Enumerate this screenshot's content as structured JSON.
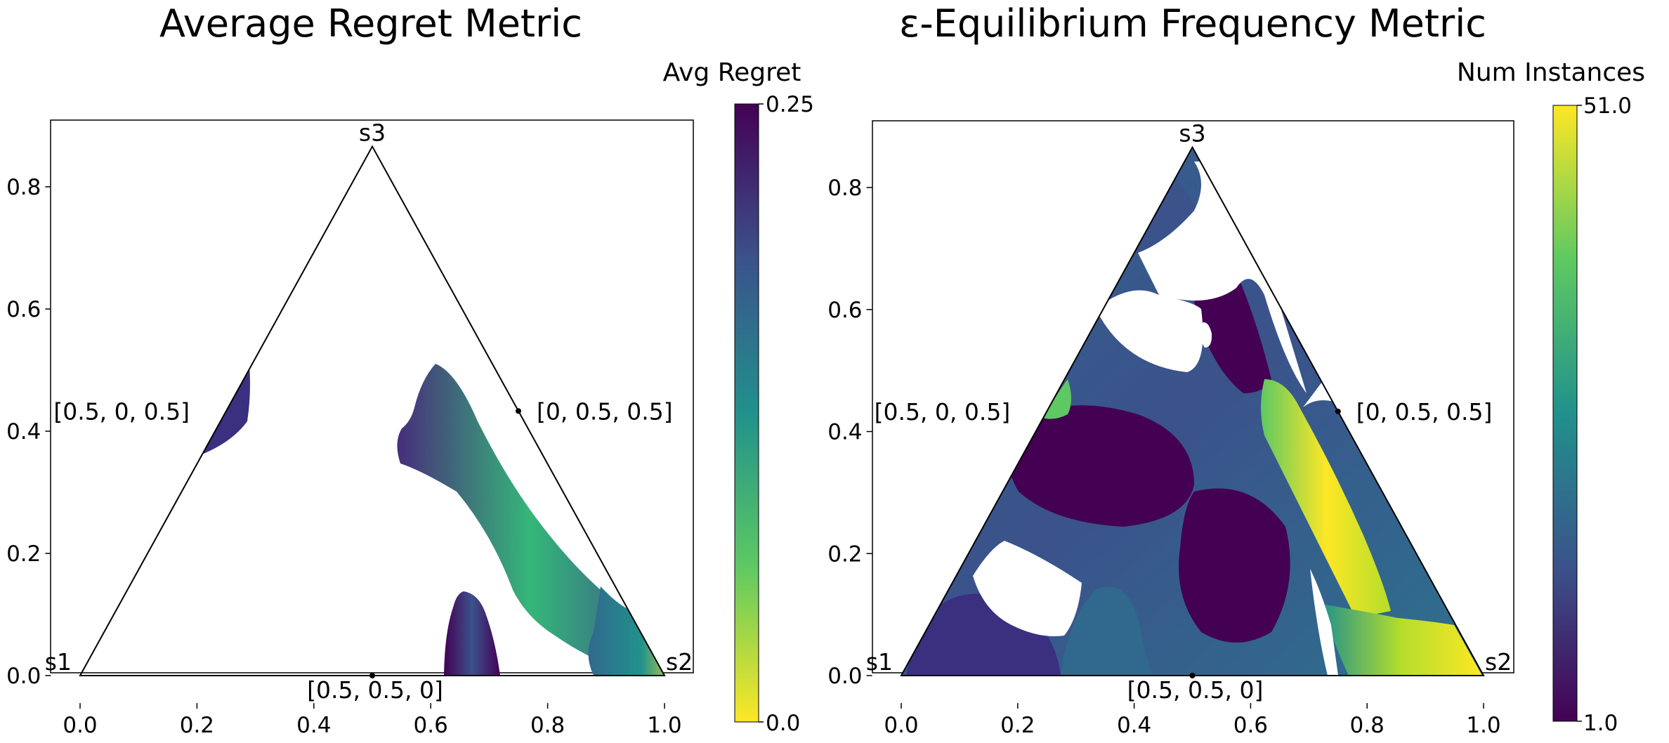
{
  "chart_data": [
    {
      "type": "heatmap",
      "title": "Average Regret Metric",
      "colorbar_label": "Avg Regret",
      "colorbar_range": [
        0.0,
        0.25
      ],
      "colorbar_ticks": [
        "0.25",
        "0.0"
      ],
      "colormap": "viridis_r",
      "xlim": [
        -0.05,
        1.05
      ],
      "ylim": [
        -0.045,
        0.91
      ],
      "x_ticks": [
        "0.0",
        "0.2",
        "0.4",
        "0.6",
        "0.8",
        "1.0"
      ],
      "y_ticks": [
        "0.0",
        "0.2",
        "0.4",
        "0.6",
        "0.8"
      ],
      "vertex_labels": [
        "s1",
        "s2",
        "s3"
      ],
      "point_annotations": [
        {
          "x": 0.5,
          "y": 0.0,
          "label": "[0.5, 0.5, 0]"
        },
        {
          "x": 0.25,
          "y": 0.433,
          "label": "[0.5, 0, 0.5]"
        },
        {
          "x": 0.75,
          "y": 0.433,
          "label": "[0, 0.5, 0.5]"
        }
      ]
    },
    {
      "type": "heatmap",
      "title": "ε-Equilibrium Frequency Metric",
      "colorbar_label": "Num Instances",
      "colorbar_range": [
        1.0,
        51.0
      ],
      "colorbar_ticks": [
        "51.0",
        "1.0"
      ],
      "colormap": "viridis",
      "xlim": [
        -0.05,
        1.05
      ],
      "ylim": [
        -0.045,
        0.91
      ],
      "x_ticks": [
        "0.0",
        "0.2",
        "0.4",
        "0.6",
        "0.8",
        "1.0"
      ],
      "y_ticks": [
        "0.0",
        "0.2",
        "0.4",
        "0.6",
        "0.8"
      ],
      "vertex_labels": [
        "s1",
        "s2",
        "s3"
      ],
      "point_annotations": [
        {
          "x": 0.5,
          "y": 0.0,
          "label": "[0.5, 0.5, 0]"
        },
        {
          "x": 0.25,
          "y": 0.433,
          "label": "[0.5, 0, 0.5]"
        },
        {
          "x": 0.75,
          "y": 0.433,
          "label": "[0, 0.5, 0.5]"
        }
      ]
    }
  ],
  "colors": {
    "dark": "#440154",
    "mid_dark": "#3b528b",
    "mid": "#21918c",
    "mid_light": "#5ec962",
    "bright": "#fde725"
  }
}
